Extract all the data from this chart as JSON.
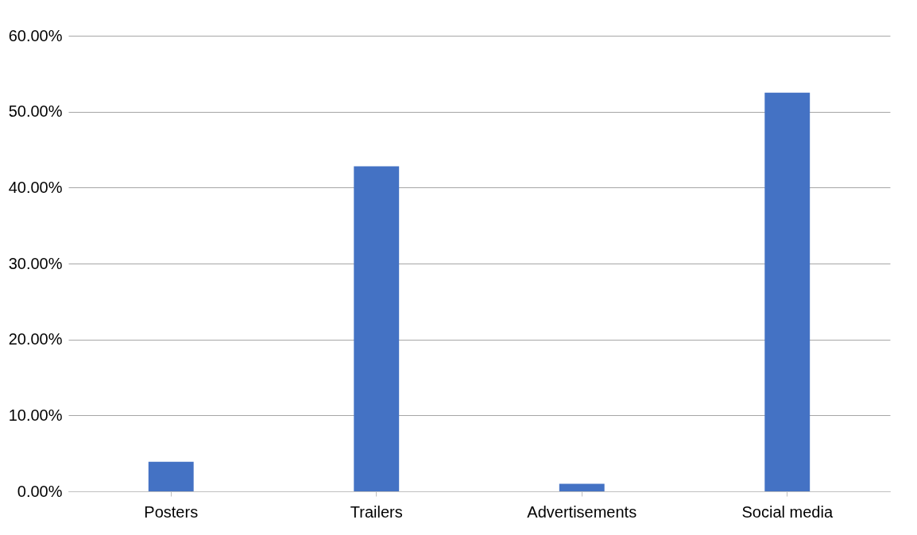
{
  "chart_data": {
    "type": "bar",
    "categories": [
      "Posters",
      "Trailers",
      "Advertisements",
      "Social media"
    ],
    "values": [
      3.9,
      42.8,
      1.0,
      52.5
    ],
    "color": "#4472c4",
    "ylim": [
      0,
      60
    ],
    "yticks": [
      {
        "value": 0,
        "label": "0.00%"
      },
      {
        "value": 10,
        "label": "10.00%"
      },
      {
        "value": 20,
        "label": "20.00%"
      },
      {
        "value": 30,
        "label": "30.00%"
      },
      {
        "value": 40,
        "label": "40.00%"
      },
      {
        "value": 50,
        "label": "50.00%"
      },
      {
        "value": 60,
        "label": "60.00%"
      }
    ],
    "grid": "y"
  }
}
